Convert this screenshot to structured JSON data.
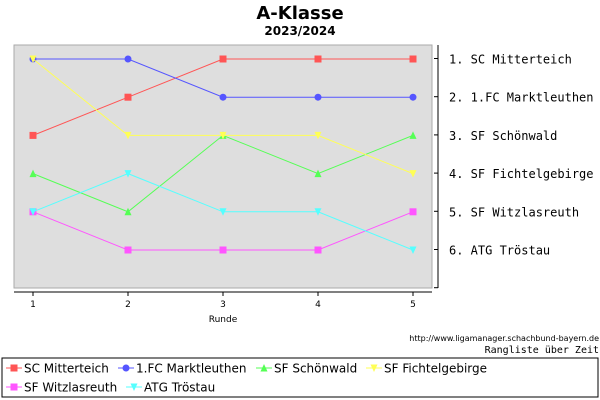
{
  "chart_data": {
    "type": "line",
    "title": "A-Klasse",
    "subtitle": "2023/2024",
    "xlabel": "Runde",
    "x": [
      1,
      2,
      3,
      4,
      5
    ],
    "ylim": [
      0.5,
      7
    ],
    "y_inverted": true,
    "grid": false,
    "legend_position": "bottom",
    "series": [
      {
        "name": "SC Mitterteich",
        "color": "#ff5555",
        "marker": "square",
        "values": [
          3,
          2,
          1,
          1,
          1
        ]
      },
      {
        "name": "1.FC Marktleuthen",
        "color": "#5555ff",
        "marker": "circle",
        "values": [
          1,
          1,
          2,
          2,
          2
        ]
      },
      {
        "name": "SF Schönwald",
        "color": "#55ff55",
        "marker": "triangle-up",
        "values": [
          4,
          5,
          3,
          4,
          3
        ]
      },
      {
        "name": "SF Fichtelgebirge",
        "color": "#ffff55",
        "marker": "triangle-down",
        "values": [
          1,
          3,
          3,
          3,
          4
        ]
      },
      {
        "name": "SF Witzlasreuth",
        "color": "#ff55ff",
        "marker": "square",
        "values": [
          5,
          6,
          6,
          6,
          5
        ]
      },
      {
        "name": "ATG Tröstau",
        "color": "#55ffff",
        "marker": "triangle-down",
        "values": [
          5,
          4,
          5,
          5,
          6
        ]
      }
    ],
    "rank_labels": [
      {
        "rank": 1,
        "text": "1. SC Mitterteich"
      },
      {
        "rank": 2,
        "text": "2. 1.FC Marktleuthen"
      },
      {
        "rank": 3,
        "text": "3. SF Schönwald"
      },
      {
        "rank": 4,
        "text": "4. SF Fichtelgebirge"
      },
      {
        "rank": 5,
        "text": "5. SF Witzlasreuth"
      },
      {
        "rank": 6,
        "text": "6. ATG Tröstau"
      }
    ],
    "source_url": "http://www.ligamanager.schachbund-bayern.de",
    "caption": "Rangliste über Zeit"
  }
}
